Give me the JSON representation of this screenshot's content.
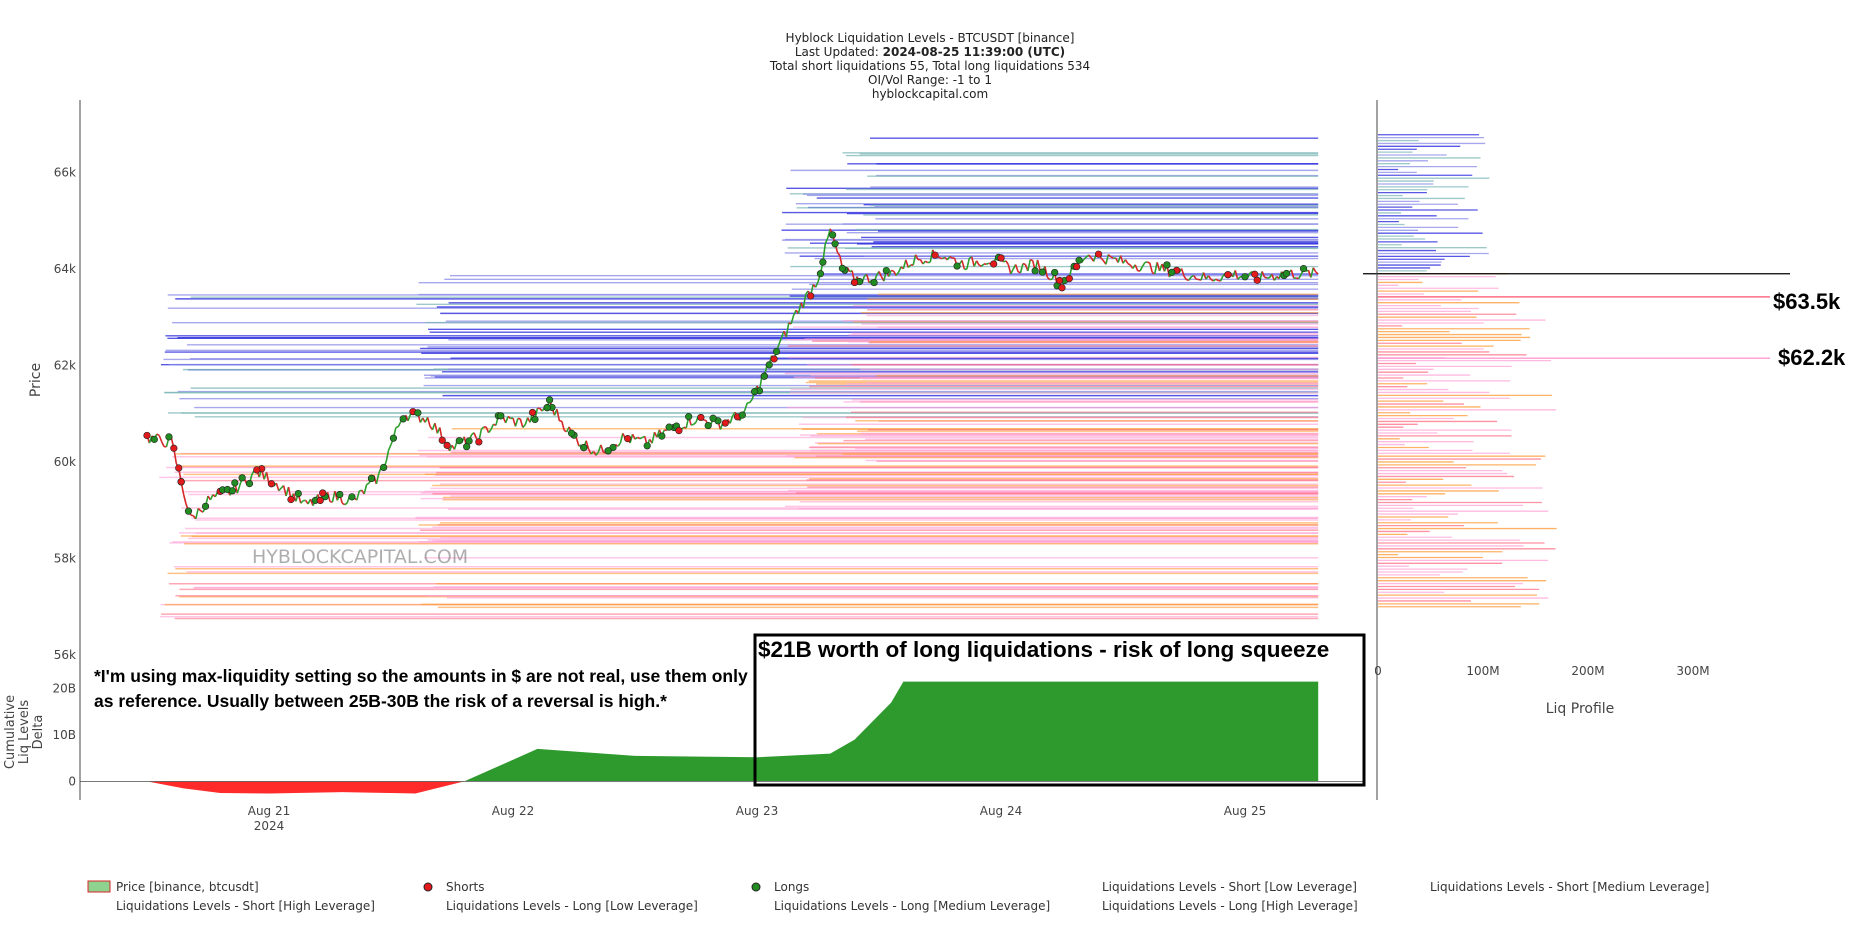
{
  "header": {
    "title": "Hyblock Liquidation Levels - BTCUSDT [binance]",
    "updated_label": "Last Updated:",
    "updated_value": "2024-08-25 11:39:00 (UTC)",
    "totals": "Total short liquidations 55, Total long liquidations 534",
    "range": "OI/Vol Range: -1 to 1",
    "site": "hyblockcapital.com"
  },
  "watermark": "HYBLOCKCAPITAL.COM",
  "note": "*I'm using max-liquidity setting so the amounts in $ are not real, use them only as reference. Usually between 25B-30B the risk of a reversal is high.*",
  "box_title": "$21B worth of long liquidations - risk of long squeeze",
  "callouts": {
    "c1": "$63.5k",
    "c2": "$62.2k"
  },
  "colors": {
    "price_up": "#2ca02c",
    "price_down": "#d62728",
    "short_dot": "#e31a1c",
    "long_dot": "#228b22",
    "short_low": "#7fb8b8",
    "short_med": "#8a8ae8",
    "short_high": "#1f1fdc",
    "long_low": "#ffa3d7",
    "long_med": "#ff6e84",
    "long_high": "#ff9933",
    "cum_pos": "#2e9a2e",
    "cum_neg": "#ff2b2b"
  },
  "chart_data": {
    "type": "line",
    "price_panel": {
      "ylabel": "Price",
      "y_ticks": [
        "66k",
        "64k",
        "62k",
        "60k",
        "58k",
        "56k"
      ],
      "ylim": [
        56000,
        67500
      ],
      "x_ticks": [
        "Aug 21",
        "Aug 22",
        "Aug 23",
        "Aug 24",
        "Aug 25"
      ],
      "x_year": "2024",
      "xlim_days": [
        0,
        5.0
      ],
      "series_price": {
        "name": "Price [binance, btcusdt]",
        "t": [
          0,
          0.1,
          0.18,
          0.25,
          0.35,
          0.45,
          0.55,
          0.65,
          0.75,
          0.85,
          0.95,
          1.05,
          1.15,
          1.25,
          1.35,
          1.45,
          1.55,
          1.65,
          1.75,
          1.85,
          1.95,
          2.05,
          2.15,
          2.25,
          2.35,
          2.45,
          2.55,
          2.65,
          2.75,
          2.8,
          2.85,
          2.9,
          2.95,
          3.05,
          3.15,
          3.25,
          3.35,
          3.45,
          3.55,
          3.65,
          3.75,
          3.85,
          3.95,
          4.05,
          4.15,
          4.25,
          4.35,
          4.45,
          4.55,
          4.65,
          4.75,
          4.8
        ],
        "price": [
          60500,
          60400,
          58800,
          59200,
          59400,
          59800,
          59500,
          59100,
          59300,
          59200,
          59700,
          61000,
          60900,
          60300,
          60500,
          60900,
          60800,
          61200,
          60500,
          60200,
          60500,
          60400,
          60700,
          60900,
          60800,
          61000,
          62000,
          63000,
          63800,
          64800,
          64000,
          63800,
          63800,
          63900,
          64200,
          64300,
          64100,
          64200,
          64000,
          64100,
          63700,
          64300,
          64200,
          64100,
          64000,
          63900,
          63800,
          63900,
          63800,
          63900,
          63900,
          63900
        ]
      },
      "current_price_line": 63900
    },
    "liq_profile": {
      "xlabel": "Liq Profile",
      "x_ticks": [
        "0",
        "100M",
        "200M",
        "300M"
      ],
      "xlim": [
        0,
        400
      ]
    },
    "cumulative_panel": {
      "ylabel": "Cumulative Liq Levels Delta",
      "y_ticks": [
        "20B",
        "10B",
        "0"
      ],
      "ylim": [
        -4,
        24
      ],
      "t": [
        0,
        0.15,
        0.3,
        0.5,
        0.8,
        1.0,
        1.1,
        1.3,
        1.6,
        2.0,
        2.5,
        2.8,
        2.9,
        3.05,
        3.1,
        3.3,
        3.8,
        4.3,
        4.8
      ],
      "values": [
        0,
        -1.5,
        -2.5,
        -2.6,
        -2.3,
        -2.5,
        -2.6,
        0,
        7,
        5.5,
        5.2,
        6,
        9,
        17,
        21.5,
        21.5,
        21.5,
        21.5,
        21.5
      ],
      "box_value": "21B"
    },
    "legend": [
      "Price [binance, btcusdt]",
      "Shorts",
      "Longs",
      "Liquidations Levels - Short [Low Leverage]",
      "Liquidations Levels - Short [Medium Leverage]",
      "Liquidations Levels - Short [High Leverage]",
      "Liquidations Levels - Long [Low Leverage]",
      "Liquidations Levels - Long [Medium Leverage]",
      "Liquidations Levels - Long [High Leverage]"
    ]
  }
}
